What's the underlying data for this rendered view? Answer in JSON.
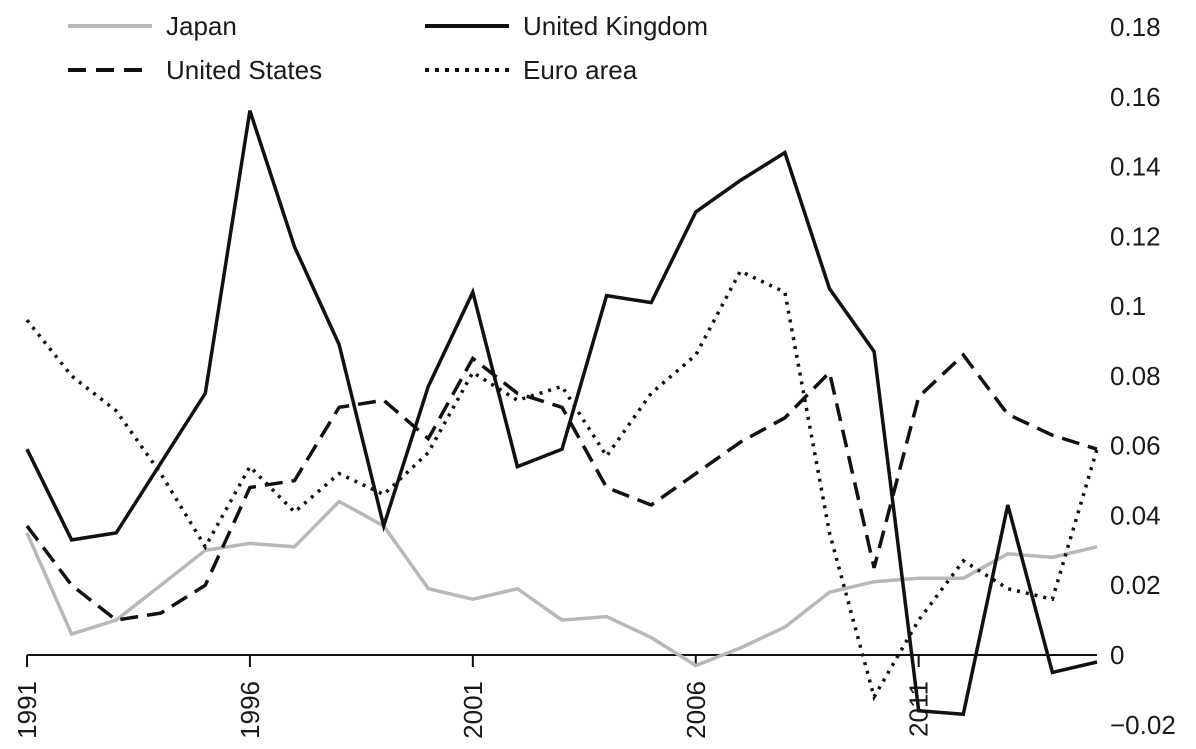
{
  "chart_data": {
    "type": "line",
    "title": "",
    "xlabel": "",
    "ylabel": "",
    "xlim": [
      1991,
      2015
    ],
    "ylim": [
      -0.02,
      0.18
    ],
    "y_axis_side": "right",
    "grid": false,
    "legend_position": "top-left",
    "x_ticks": [
      1991,
      1996,
      2001,
      2006,
      2011
    ],
    "x_tick_labels": [
      "1991",
      "1996",
      "2001",
      "2006",
      "2011"
    ],
    "y_ticks": [
      -0.02,
      0,
      0.02,
      0.04,
      0.06,
      0.08,
      0.1,
      0.12,
      0.14,
      0.16,
      0.18
    ],
    "y_tick_labels": [
      "−0.02",
      "0",
      "0.02",
      "0.04",
      "0.06",
      "0.08",
      "0.1",
      "0.12",
      "0.14",
      "0.16",
      "0.18"
    ],
    "x": [
      1991,
      1992,
      1993,
      1994,
      1995,
      1996,
      1997,
      1998,
      1999,
      2000,
      2001,
      2002,
      2003,
      2004,
      2005,
      2006,
      2007,
      2008,
      2009,
      2010,
      2011,
      2012,
      2013,
      2014,
      2015
    ],
    "series": [
      {
        "name": "Japan",
        "style": "solid",
        "color": "#b8b8b8",
        "values": [
          0.035,
          0.006,
          0.01,
          0.02,
          0.03,
          0.032,
          0.031,
          0.044,
          0.037,
          0.019,
          0.016,
          0.019,
          0.01,
          0.011,
          0.005,
          -0.003,
          0.002,
          0.008,
          0.018,
          0.021,
          0.022,
          0.022,
          0.029,
          0.028,
          0.031
        ]
      },
      {
        "name": "United Kingdom",
        "style": "solid",
        "color": "#111111",
        "values": [
          0.059,
          0.033,
          0.035,
          0.055,
          0.075,
          0.156,
          0.117,
          0.089,
          0.037,
          0.077,
          0.104,
          0.054,
          0.059,
          0.103,
          0.101,
          0.127,
          0.136,
          0.144,
          0.105,
          0.087,
          -0.016,
          -0.017,
          0.043,
          -0.005,
          -0.002
        ]
      },
      {
        "name": "United States",
        "style": "dashed",
        "color": "#111111",
        "values": [
          0.037,
          0.02,
          0.01,
          0.012,
          0.02,
          0.048,
          0.05,
          0.071,
          0.073,
          0.062,
          0.085,
          0.075,
          0.071,
          0.048,
          0.043,
          0.052,
          0.061,
          0.068,
          0.081,
          0.025,
          0.074,
          0.086,
          0.069,
          0.063,
          0.059
        ]
      },
      {
        "name": "Euro area",
        "style": "dotted",
        "color": "#111111",
        "values": [
          0.096,
          0.08,
          0.07,
          0.052,
          0.031,
          0.054,
          0.041,
          0.052,
          0.046,
          0.058,
          0.081,
          0.073,
          0.077,
          0.057,
          0.075,
          0.086,
          0.11,
          0.104,
          0.035,
          -0.012,
          0.01,
          0.027,
          0.019,
          0.016,
          0.059
        ]
      }
    ]
  }
}
